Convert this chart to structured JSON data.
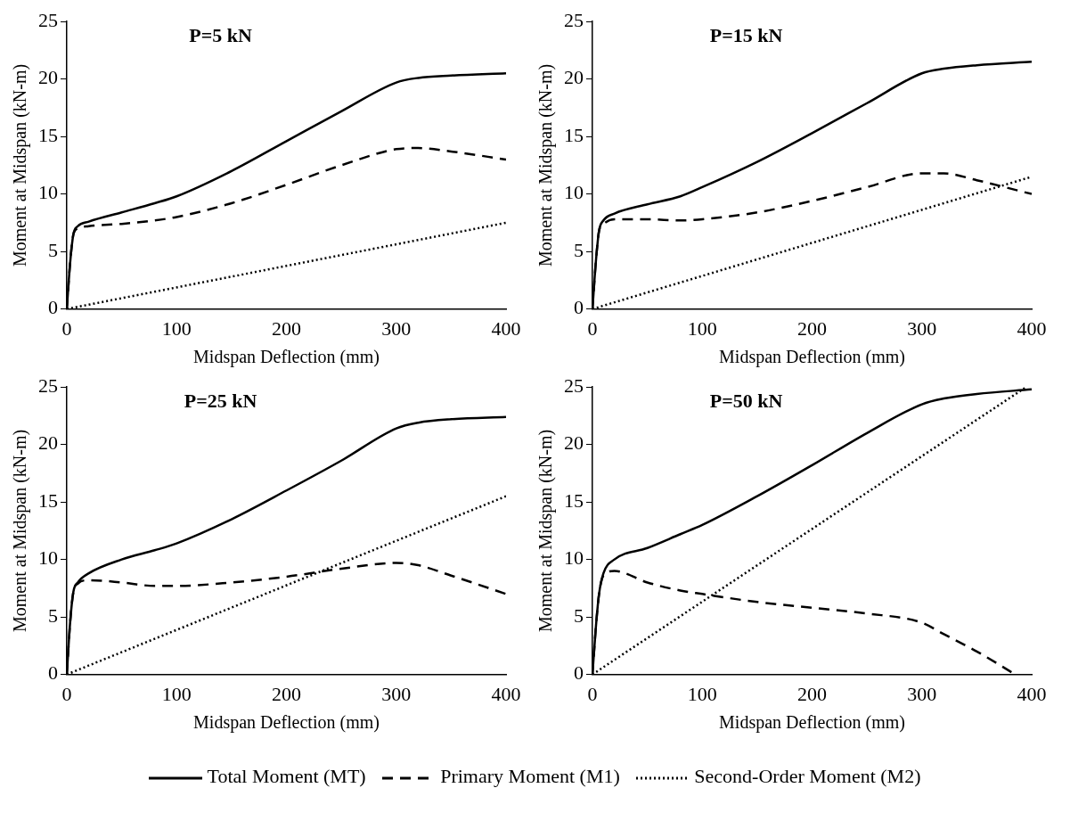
{
  "chart_data": [
    {
      "type": "line",
      "title": "P=5 kN",
      "xlabel": "Midspan Deflection (mm)",
      "ylabel": "Moment at Midspan (kN-m)",
      "xlim": [
        0,
        400
      ],
      "xticks": [
        0,
        100,
        200,
        300,
        400
      ],
      "ylim": [
        0,
        25
      ],
      "yticks": [
        0,
        5,
        10,
        15,
        20,
        25
      ],
      "grid": false,
      "marker": "none",
      "series": [
        {
          "color": "#000000",
          "line_style": "solid",
          "x": [
            0,
            3,
            6,
            10,
            20,
            50,
            80,
            100,
            150,
            200,
            250,
            300,
            320,
            350,
            400
          ],
          "values": [
            0,
            4,
            6.5,
            7.2,
            7.6,
            8.4,
            9.2,
            9.8,
            12,
            14.6,
            17.2,
            19.7,
            20.1,
            20.3,
            20.5
          ]
        },
        {
          "color": "#000000",
          "line_style": "dashed",
          "x": [
            0,
            3,
            6,
            10,
            20,
            50,
            80,
            100,
            150,
            200,
            250,
            300,
            320,
            350,
            400
          ],
          "values": [
            0,
            4,
            6.5,
            7,
            7.2,
            7.4,
            7.7,
            8,
            9.2,
            10.8,
            12.5,
            13.9,
            14,
            13.7,
            13
          ]
        },
        {
          "color": "#000000",
          "line_style": "dotted",
          "x": [
            0,
            400
          ],
          "values": [
            0,
            7.5
          ]
        }
      ]
    },
    {
      "type": "line",
      "title": "P=15 kN",
      "xlabel": "Midspan Deflection (mm)",
      "ylabel": "Moment at Midspan (kN-m)",
      "xlim": [
        0,
        400
      ],
      "xticks": [
        0,
        100,
        200,
        300,
        400
      ],
      "ylim": [
        0,
        25
      ],
      "yticks": [
        0,
        5,
        10,
        15,
        20,
        25
      ],
      "grid": false,
      "marker": "none",
      "series": [
        {
          "color": "#000000",
          "line_style": "solid",
          "x": [
            0,
            3,
            6,
            10,
            20,
            50,
            80,
            100,
            150,
            200,
            250,
            300,
            320,
            350,
            400
          ],
          "values": [
            0,
            4,
            6.8,
            7.7,
            8.3,
            9.1,
            9.8,
            10.6,
            12.8,
            15.3,
            17.9,
            20.5,
            20.9,
            21.2,
            21.5
          ]
        },
        {
          "color": "#000000",
          "line_style": "dashed",
          "x": [
            0,
            3,
            6,
            10,
            20,
            50,
            80,
            100,
            150,
            200,
            250,
            300,
            320,
            350,
            400
          ],
          "values": [
            0,
            4,
            6.8,
            7.4,
            7.8,
            7.8,
            7.7,
            7.8,
            8.4,
            9.4,
            10.6,
            11.8,
            11.8,
            11.2,
            10
          ]
        },
        {
          "color": "#000000",
          "line_style": "dotted",
          "x": [
            0,
            400
          ],
          "values": [
            0,
            11.5
          ]
        }
      ]
    },
    {
      "type": "line",
      "title": "P=25 kN",
      "xlabel": "Midspan Deflection (mm)",
      "ylabel": "Moment at Midspan (kN-m)",
      "xlim": [
        0,
        400
      ],
      "xticks": [
        0,
        100,
        200,
        300,
        400
      ],
      "ylim": [
        0,
        25
      ],
      "yticks": [
        0,
        5,
        10,
        15,
        20,
        25
      ],
      "grid": false,
      "marker": "none",
      "series": [
        {
          "color": "#000000",
          "line_style": "solid",
          "x": [
            0,
            3,
            6,
            10,
            20,
            50,
            80,
            100,
            150,
            200,
            250,
            300,
            320,
            350,
            400
          ],
          "values": [
            0,
            4.5,
            7.2,
            8,
            8.8,
            10,
            10.8,
            11.4,
            13.5,
            16,
            18.6,
            21.4,
            21.9,
            22.2,
            22.4
          ]
        },
        {
          "color": "#000000",
          "line_style": "dashed",
          "x": [
            0,
            3,
            6,
            10,
            20,
            50,
            80,
            100,
            150,
            200,
            250,
            300,
            320,
            350,
            400
          ],
          "values": [
            0,
            4.5,
            7.2,
            7.9,
            8.2,
            8,
            7.7,
            7.7,
            8,
            8.5,
            9.2,
            9.7,
            9.5,
            8.6,
            7
          ]
        },
        {
          "color": "#000000",
          "line_style": "dotted",
          "x": [
            0,
            400
          ],
          "values": [
            0,
            15.5
          ]
        }
      ]
    },
    {
      "type": "line",
      "title": "P=50 kN",
      "xlabel": "Midspan Deflection (mm)",
      "ylabel": "Moment at Midspan (kN-m)",
      "xlim": [
        0,
        400
      ],
      "xticks": [
        0,
        100,
        200,
        300,
        400
      ],
      "ylim": [
        0,
        25
      ],
      "yticks": [
        0,
        5,
        10,
        15,
        20,
        25
      ],
      "grid": false,
      "legend": "bottom",
      "marker": "none",
      "series": [
        {
          "name": "Total Moment (MT)",
          "color": "#000000",
          "line_style": "solid",
          "x": [
            0,
            3,
            6,
            10,
            20,
            50,
            80,
            100,
            150,
            200,
            250,
            300,
            320,
            350,
            400
          ],
          "values": [
            0,
            4,
            7,
            8.8,
            10,
            11,
            12.2,
            13,
            15.5,
            18.2,
            21,
            23.5,
            24,
            24.4,
            24.8
          ]
        },
        {
          "name": "Primary Moment (M1)",
          "color": "#000000",
          "line_style": "dashed",
          "x": [
            0,
            3,
            6,
            10,
            20,
            50,
            80,
            100,
            150,
            200,
            250,
            300,
            320,
            350,
            385
          ],
          "values": [
            0,
            4,
            7,
            8.6,
            9,
            8,
            7.3,
            7,
            6.3,
            5.8,
            5.3,
            4.5,
            3.5,
            2,
            0
          ]
        },
        {
          "name": "Second-Order Moment (M2)",
          "color": "#000000",
          "line_style": "dotted",
          "x": [
            0,
            395
          ],
          "values": [
            0,
            25
          ]
        }
      ]
    }
  ]
}
